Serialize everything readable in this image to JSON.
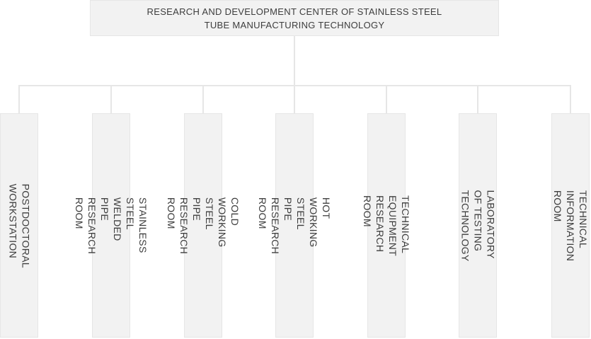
{
  "org_chart": {
    "root": {
      "title_lines": [
        "RESEARCH AND DEVELOPMENT CENTER OF STAINLESS STEEL",
        "TUBE MANUFACTURING TECHNOLOGY"
      ]
    },
    "departments": [
      {
        "name": "Postdoctoral Workstation",
        "lines": [
          "POSTDOCTORAL WORKSTATION"
        ]
      },
      {
        "name": "Stainless Steel Welded Pipe Research Room",
        "lines": [
          "STAINLESS STEEL WELDED PIPE",
          "RESEARCH ROOM"
        ]
      },
      {
        "name": "Cold Working Steel Pipe Research Room",
        "lines": [
          "COLD WORKING STEEL",
          "PIPE RESEARCH ROOM"
        ]
      },
      {
        "name": "Hot Working Steel Pipe Research Room",
        "lines": [
          "HOT WORKING STEEL PIPE",
          "RESEARCH ROOM"
        ]
      },
      {
        "name": "Technical Equipment Research Room",
        "lines": [
          "TECHNICAL EQUIPMENT",
          "RESEARCH ROOM"
        ]
      },
      {
        "name": "Laboratory of Testing Technology",
        "lines": [
          "LABORATORY OF TESTING",
          "TECHNOLOGY"
        ]
      },
      {
        "name": "Technical Information Room",
        "lines": [
          "TECHNICAL INFORMATION ROOM"
        ]
      }
    ],
    "colors": {
      "node_fill": "#f2f2f2",
      "node_border": "#e6e6e6",
      "connector": "#e6e6e6",
      "text": "#3d3d3d",
      "background": "#ffffff"
    }
  }
}
